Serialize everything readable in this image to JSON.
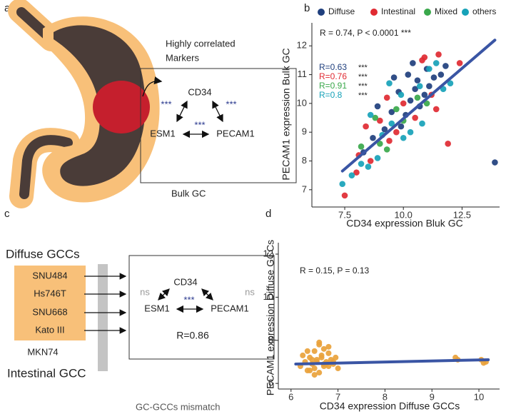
{
  "panels": {
    "a": {
      "letter": "a",
      "box_title": [
        "Highly correlated",
        "Markers"
      ],
      "nodes": [
        "CD34",
        "ESM1",
        "PECAM1"
      ],
      "stars": [
        "***",
        "***",
        "***"
      ],
      "caption": "Bulk GC"
    },
    "c": {
      "letter": "c",
      "group_top": "Diffuse GCCs",
      "cell_lines": [
        "SNU484",
        "Hs746T",
        "SNU668",
        "Kato III"
      ],
      "other_line": "MKN74",
      "group_bottom": "Intestinal GCC",
      "nodes": [
        "CD34",
        "ESM1",
        "PECAM1"
      ],
      "edges": [
        "ns",
        "ns",
        "***"
      ],
      "r_text": "R=0.86",
      "caption": "GC-GCCs mismatch"
    }
  },
  "chart_data": [
    {
      "type": "scatter",
      "panel_label": "b",
      "annotation": "R = 0.74, P < 0.0001 ***",
      "x_label": "CD34 expression Bluk GC",
      "y_label": "PECAM1 expression Bulk GC",
      "xlim": [
        6.1,
        14.1
      ],
      "ylim": [
        6.4,
        12.8
      ],
      "xticks": [
        7.5,
        {
          "value": 10,
          "label": "10.0"
        },
        12.5
      ],
      "yticks": [
        7,
        8,
        9,
        10,
        11,
        12
      ],
      "legend": "top",
      "series": [
        {
          "name": "Diffuse",
          "color": "#1f3f7d",
          "r_label": "R=0.63",
          "r_stars": "***",
          "x": [
            9.2,
            9.8,
            10.3,
            10.6,
            11.0,
            10.1,
            9.5,
            10.9,
            11.3,
            8.7,
            10.4,
            11.6,
            9.9,
            10.7,
            8.3,
            11.1,
            9.6,
            10.2,
            11.8,
            13.9,
            8.9,
            10.5
          ],
          "values": [
            9.1,
            10.4,
            10.1,
            10.8,
            11.2,
            9.6,
            9.7,
            10.3,
            10.9,
            8.8,
            11.4,
            11.0,
            9.2,
            9.9,
            8.3,
            10.6,
            10.9,
            11.0,
            11.3,
            7.95,
            9.9,
            10.5
          ]
        },
        {
          "name": "Intestinal",
          "color": "#e02a32",
          "r_label": "R=0.76",
          "r_stars": "***",
          "x": [
            7.5,
            8.1,
            8.6,
            9.0,
            9.4,
            10.0,
            10.8,
            11.2,
            11.9,
            12.4,
            9.7,
            8.4,
            10.5,
            11.5,
            9.3,
            8.0,
            10.9,
            11.4
          ],
          "values": [
            6.8,
            8.2,
            8.0,
            9.4,
            8.7,
            10.0,
            11.5,
            10.3,
            8.6,
            11.4,
            9.0,
            9.2,
            9.5,
            11.7,
            10.2,
            7.6,
            11.6,
            9.8
          ]
        },
        {
          "name": "Mixed",
          "color": "#3aa84b",
          "r_label": "R=0.91",
          "r_stars": "***",
          "x": [
            8.2,
            9.3,
            10.0,
            10.6,
            9.0,
            11.0,
            8.8,
            9.7
          ],
          "values": [
            8.5,
            8.4,
            9.4,
            10.2,
            8.6,
            10.0,
            9.5,
            9.8
          ]
        },
        {
          "name": "others",
          "color": "#17a2b8",
          "r_label": "R=0.8",
          "r_stars": "***",
          "x": [
            7.4,
            7.8,
            8.5,
            8.9,
            9.1,
            9.5,
            9.9,
            10.3,
            10.7,
            11.1,
            11.4,
            12.0,
            8.2,
            8.6,
            10.0,
            11.7,
            9.4,
            10.8
          ],
          "values": [
            7.2,
            7.5,
            7.8,
            8.1,
            8.9,
            9.3,
            10.3,
            9.0,
            10.6,
            11.2,
            11.4,
            10.7,
            7.9,
            9.6,
            8.8,
            10.5,
            10.7,
            9.3
          ]
        }
      ],
      "fit": {
        "x": [
          7.4,
          13.9
        ],
        "y": [
          7.65,
          12.2
        ],
        "color": "#3a55a4"
      }
    },
    {
      "type": "scatter",
      "panel_label": "d",
      "annotation": "R = 0.15, P = 0.13",
      "x_label": "CD34 expression Diffuse GCCs",
      "y_label": "PECAM1 expression Diffuse GCCs",
      "xlim": [
        5.73,
        10.44
      ],
      "ylim": [
        5.74,
        12.53
      ],
      "xticks": [
        6,
        7,
        8,
        9,
        10
      ],
      "yticks": [
        6,
        8,
        10,
        12
      ],
      "color": "#e9a23b",
      "x": [
        6.2,
        6.3,
        6.35,
        6.4,
        6.45,
        6.5,
        6.5,
        6.55,
        6.6,
        6.6,
        6.65,
        6.7,
        6.7,
        6.75,
        6.8,
        6.8,
        6.85,
        6.9,
        6.95,
        7.0,
        6.25,
        6.4,
        6.55,
        6.6,
        6.7,
        6.8,
        6.9,
        6.35,
        6.5,
        6.65,
        6.75,
        6.45,
        9.5,
        9.55,
        10.05,
        10.1,
        10.15
      ],
      "values": [
        6.8,
        7.0,
        6.6,
        7.2,
        6.9,
        7.5,
        6.7,
        7.1,
        7.8,
        6.5,
        7.3,
        6.9,
        7.6,
        7.0,
        6.8,
        7.4,
        7.1,
        6.9,
        7.2,
        6.7,
        7.3,
        6.6,
        7.0,
        7.9,
        6.8,
        7.7,
        7.0,
        7.5,
        6.4,
        7.2,
        6.9,
        7.1,
        7.2,
        7.1,
        7.1,
        6.95,
        7.0
      ],
      "fit": {
        "x": [
          6.1,
          10.2
        ],
        "y": [
          6.9,
          7.1
        ],
        "color": "#3a55a4"
      }
    }
  ]
}
